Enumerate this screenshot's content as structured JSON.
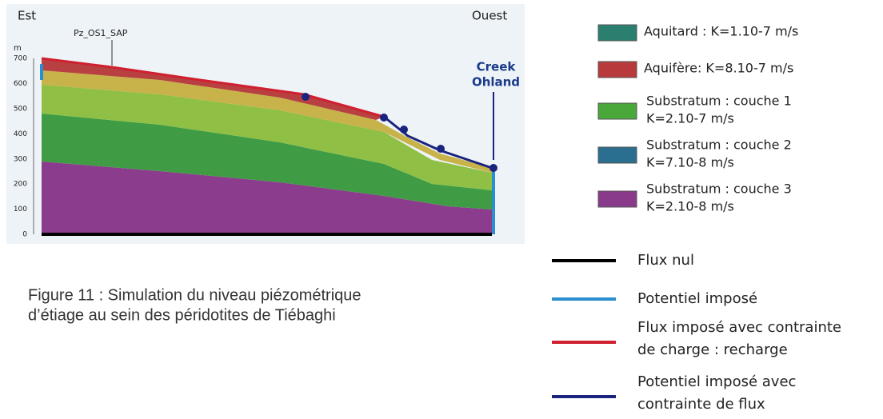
{
  "figure": {
    "left_label": "Est",
    "right_label": "Ouest",
    "axis_unit": "m",
    "axis_ticks": [
      "0",
      "100",
      "200",
      "300",
      "400",
      "500",
      "600",
      "700"
    ],
    "piezometer": "Pz_OS1_SAP",
    "creek": [
      "Creek",
      "Ohland"
    ]
  },
  "legend_layers": [
    {
      "lines": [
        "Aquitard : K=1.10-7 m/s"
      ]
    },
    {
      "lines": [
        "Aquifère: K=8.10-7 m/s"
      ]
    },
    {
      "lines": [
        "Substratum : couche 1",
        "K=2.10-7 m/s"
      ]
    },
    {
      "lines": [
        "Substratum : couche 2",
        "K=7.10-8 m/s"
      ]
    },
    {
      "lines": [
        "Substratum : couche 3",
        "K=2.10-8 m/s"
      ]
    }
  ],
  "legend_boundaries": [
    {
      "lines": [
        "Flux nul"
      ]
    },
    {
      "lines": [
        "Potentiel imposé"
      ]
    },
    {
      "lines": [
        "Flux imposé avec contrainte",
        "de charge : recharge"
      ]
    },
    {
      "lines": [
        "Potentiel imposé avec",
        "contrainte de flux"
      ]
    }
  ],
  "caption": [
    "Figure 11 : Simulation du niveau piézométrique",
    "d’étiage au sein des péridotites de Tiébaghi"
  ]
}
